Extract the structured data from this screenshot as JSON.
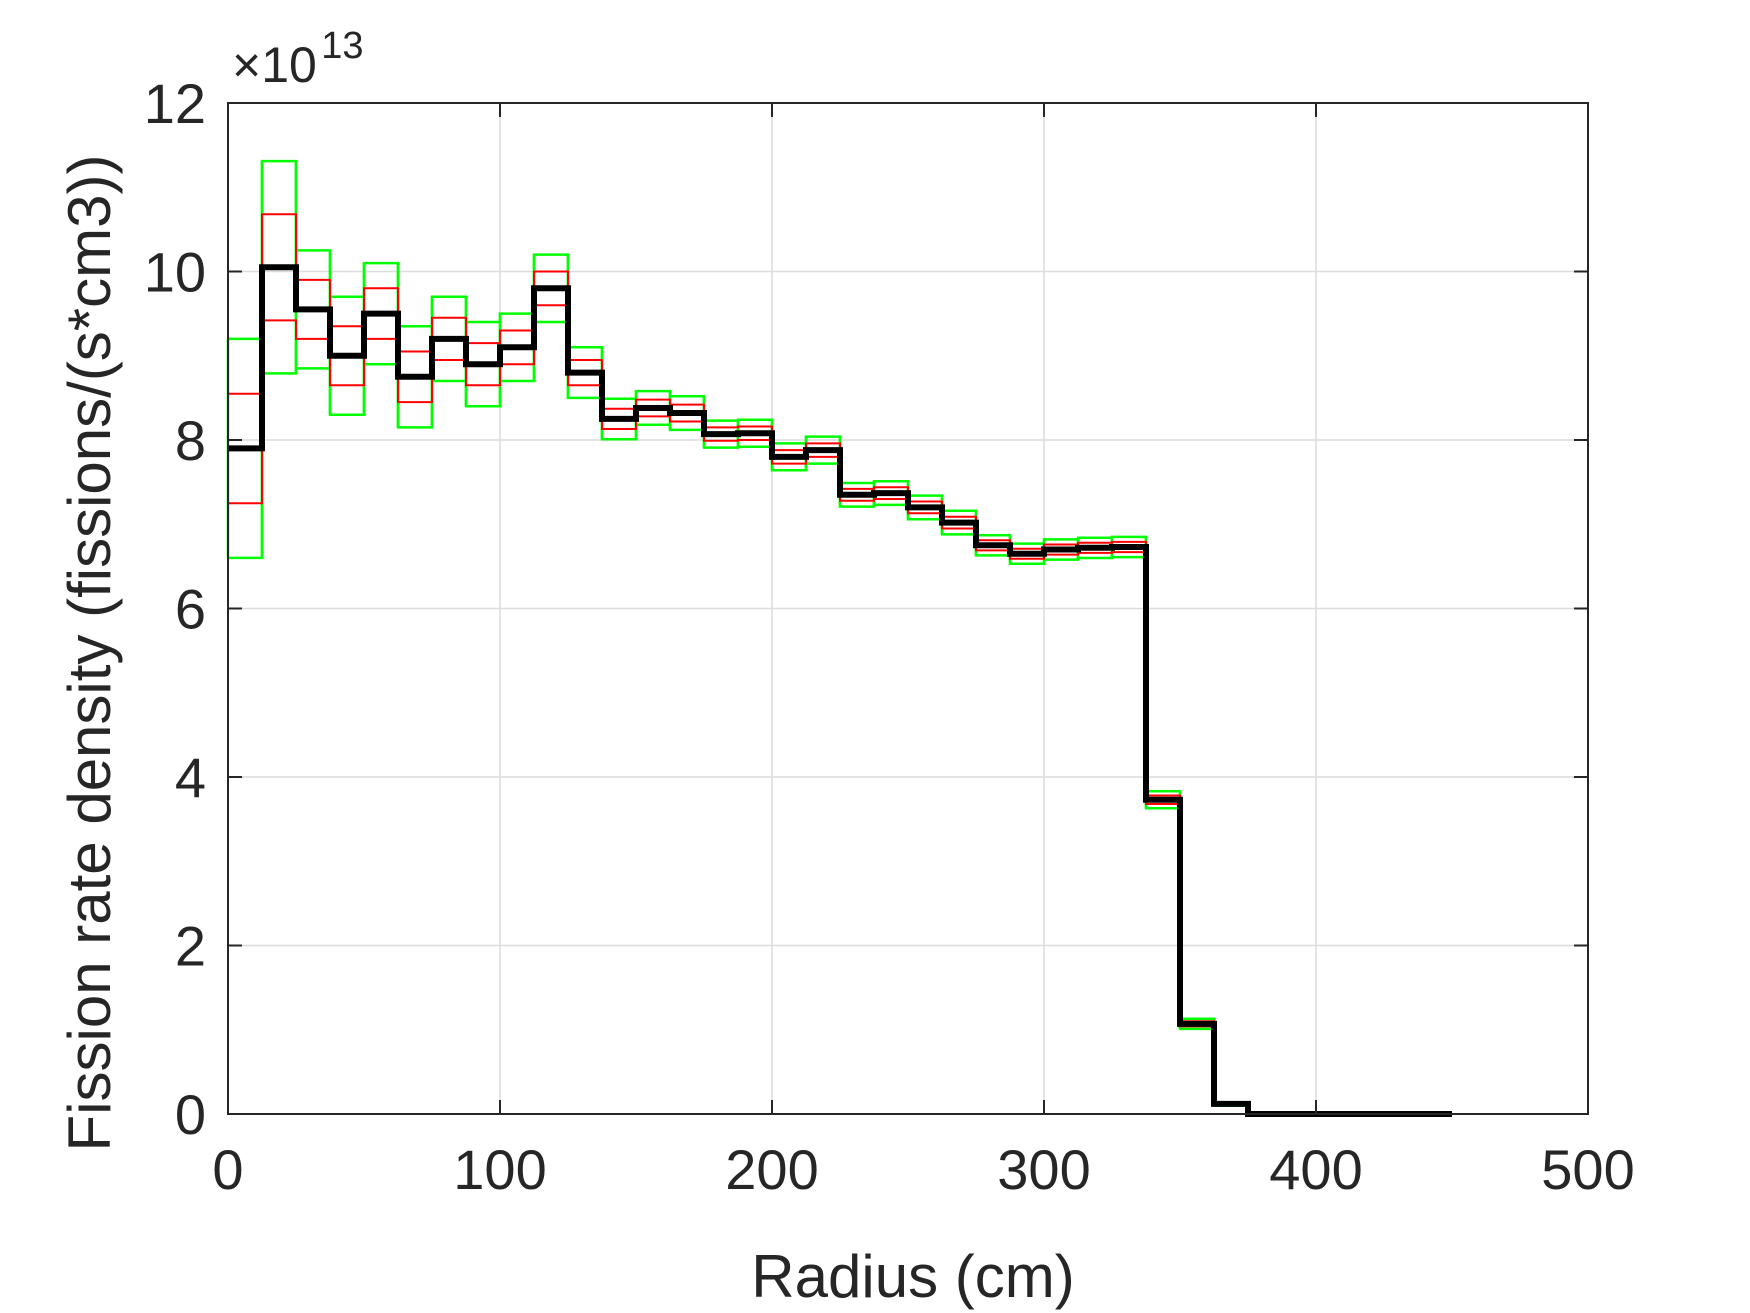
{
  "chart_data": {
    "type": "line",
    "xlabel": "Radius (cm)",
    "ylabel": "Fission rate density (fissions/(s*cm3))",
    "exponent": {
      "prefix": "×10",
      "power": "13"
    },
    "xlim": [
      0,
      500
    ],
    "ylim": [
      0,
      12
    ],
    "y_scale_factor": 10000000000000.0,
    "xticks": [
      0,
      100,
      200,
      300,
      400,
      500
    ],
    "xtick_labels": [
      "0",
      "100",
      "200",
      "300",
      "400",
      "500"
    ],
    "yticks": [
      0,
      2,
      4,
      6,
      8,
      10,
      12
    ],
    "ytick_labels": [
      "0",
      "2",
      "4",
      "6",
      "8",
      "10",
      "12"
    ],
    "grid": true,
    "colors": {
      "mean": "#000000",
      "one_sigma": "#ff0000",
      "two_sigma": "#00ff00",
      "grid": "#dcdcdc",
      "axes": "#262626"
    },
    "bin_edges": [
      0,
      12.5,
      25,
      37.5,
      50,
      62.5,
      75,
      87.5,
      100,
      112.5,
      125,
      137.5,
      150,
      162.5,
      175,
      187.5,
      200,
      212.5,
      225,
      237.5,
      250,
      262.5,
      275,
      287.5,
      300,
      312.5,
      325,
      337.5,
      350,
      362.5,
      375,
      387.5,
      400,
      412.5,
      425,
      437.5,
      450
    ],
    "series": [
      {
        "values": [
          7.9,
          10.05,
          9.55,
          9.0,
          9.5,
          8.75,
          9.2,
          8.9,
          9.1,
          9.8,
          8.8,
          8.25,
          8.38,
          8.32,
          8.07,
          8.08,
          7.8,
          7.88,
          7.35,
          7.37,
          7.2,
          7.02,
          6.75,
          6.65,
          6.7,
          6.72,
          6.73,
          3.73,
          1.07,
          0.12,
          0.0,
          0.0,
          0.0,
          0.0,
          0.0,
          0.0
        ]
      },
      {
        "values": [
          0.65,
          0.63,
          0.35,
          0.35,
          0.3,
          0.3,
          0.25,
          0.25,
          0.2,
          0.2,
          0.15,
          0.12,
          0.1,
          0.1,
          0.08,
          0.08,
          0.08,
          0.08,
          0.07,
          0.07,
          0.07,
          0.07,
          0.06,
          0.06,
          0.06,
          0.06,
          0.06,
          0.05,
          0.03,
          0.01,
          0,
          0,
          0,
          0,
          0,
          0
        ]
      }
    ]
  }
}
